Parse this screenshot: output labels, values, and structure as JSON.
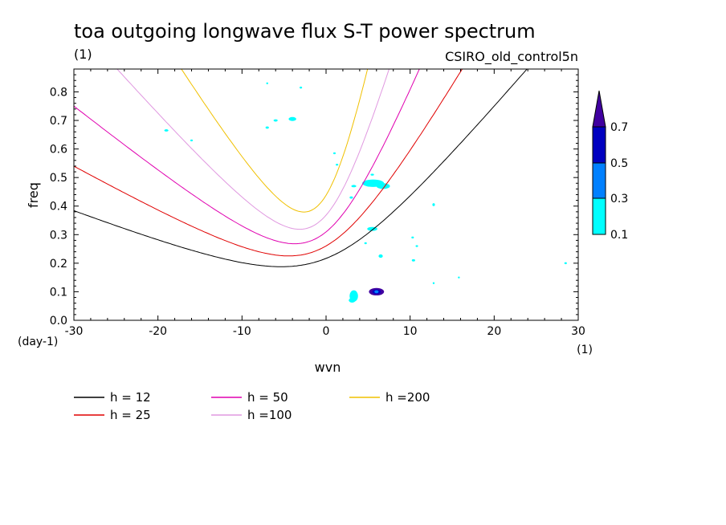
{
  "chart_data": {
    "type": "contour",
    "title": "toa outgoing longwave flux S-T power spectrum",
    "subtitle_left": "(1)",
    "subtitle_right": "CSIRO_old_control5n",
    "xlabel": "wvn",
    "ylabel": "freq",
    "x_unit_label": "(1)",
    "y_unit_label": "(day-1)",
    "xlim": [
      -30,
      30
    ],
    "ylim": [
      0,
      0.88
    ],
    "x_ticks": [
      -30,
      -20,
      -10,
      0,
      10,
      20,
      30
    ],
    "x_tick_labels": [
      "-30",
      "-20",
      "-10",
      "0",
      "10",
      "20",
      "30"
    ],
    "y_ticks": [
      0,
      0.1,
      0.2,
      0.3,
      0.4,
      0.5,
      0.6,
      0.7,
      0.8
    ],
    "y_tick_labels": [
      "0.0",
      "0.1",
      "0.2",
      "0.3",
      "0.4",
      "0.5",
      "0.6",
      "0.7",
      "0.8"
    ],
    "series": [
      {
        "name": "h = 12",
        "h": 12,
        "color": "#000000"
      },
      {
        "name": "h = 25",
        "h": 25,
        "color": "#e00000"
      },
      {
        "name": "h = 50",
        "h": 50,
        "color": "#e000b0"
      },
      {
        "name": "h =100",
        "h": 100,
        "color": "#e098e0"
      },
      {
        "name": "h =200",
        "h": 200,
        "color": "#f0c000"
      }
    ],
    "colorbar": {
      "levels": [
        "0.1",
        "0.3",
        "0.5",
        "0.7"
      ],
      "colors": [
        "#00ffff",
        "#0080ff",
        "#0000c0",
        "#4000a0"
      ]
    },
    "contour_patches": [
      {
        "x": 6.0,
        "y": 0.1,
        "rx": 0.9,
        "ry": 0.013,
        "level": 3
      },
      {
        "x": 6.0,
        "y": 0.1,
        "rx": 0.5,
        "ry": 0.008,
        "level": 2
      },
      {
        "x": 6.0,
        "y": 0.1,
        "rx": 0.25,
        "ry": 0.005,
        "level": 1
      },
      {
        "x": 5.6,
        "y": 0.48,
        "rx": 1.3,
        "ry": 0.013,
        "level": 0
      },
      {
        "x": 6.8,
        "y": 0.47,
        "rx": 0.8,
        "ry": 0.01,
        "level": 0
      },
      {
        "x": 3.3,
        "y": 0.085,
        "rx": 0.5,
        "ry": 0.02,
        "level": 0
      },
      {
        "x": 3.1,
        "y": 0.07,
        "rx": 0.4,
        "ry": 0.008,
        "level": 0
      },
      {
        "x": 5.5,
        "y": 0.32,
        "rx": 0.6,
        "ry": 0.007,
        "level": 0
      },
      {
        "x": -4.0,
        "y": 0.705,
        "rx": 0.45,
        "ry": 0.007,
        "level": 0
      },
      {
        "x": -6.0,
        "y": 0.7,
        "rx": 0.25,
        "ry": 0.004,
        "level": 0
      },
      {
        "x": -7.0,
        "y": 0.675,
        "rx": 0.2,
        "ry": 0.004,
        "level": 0
      },
      {
        "x": -19.0,
        "y": 0.665,
        "rx": 0.25,
        "ry": 0.004,
        "level": 0
      },
      {
        "x": -16.0,
        "y": 0.63,
        "rx": 0.15,
        "ry": 0.003,
        "level": 0
      },
      {
        "x": 3.3,
        "y": 0.47,
        "rx": 0.3,
        "ry": 0.004,
        "level": 0
      },
      {
        "x": 3.0,
        "y": 0.43,
        "rx": 0.2,
        "ry": 0.004,
        "level": 0
      },
      {
        "x": 5.5,
        "y": 0.51,
        "rx": 0.2,
        "ry": 0.003,
        "level": 0
      },
      {
        "x": 1.0,
        "y": 0.585,
        "rx": 0.15,
        "ry": 0.003,
        "level": 0
      },
      {
        "x": 1.3,
        "y": 0.545,
        "rx": 0.15,
        "ry": 0.003,
        "level": 0
      },
      {
        "x": 6.5,
        "y": 0.225,
        "rx": 0.25,
        "ry": 0.006,
        "level": 0
      },
      {
        "x": 10.8,
        "y": 0.26,
        "rx": 0.15,
        "ry": 0.003,
        "level": 0
      },
      {
        "x": 10.3,
        "y": 0.29,
        "rx": 0.15,
        "ry": 0.003,
        "level": 0
      },
      {
        "x": 10.4,
        "y": 0.21,
        "rx": 0.2,
        "ry": 0.004,
        "level": 0
      },
      {
        "x": 12.8,
        "y": 0.405,
        "rx": 0.15,
        "ry": 0.005,
        "level": 0
      },
      {
        "x": 4.7,
        "y": 0.27,
        "rx": 0.15,
        "ry": 0.003,
        "level": 0
      },
      {
        "x": -7.0,
        "y": 0.83,
        "rx": 0.12,
        "ry": 0.003,
        "level": 0
      },
      {
        "x": -3.0,
        "y": 0.815,
        "rx": 0.15,
        "ry": 0.003,
        "level": 0
      },
      {
        "x": 28.5,
        "y": 0.2,
        "rx": 0.15,
        "ry": 0.003,
        "level": 0
      },
      {
        "x": 12.8,
        "y": 0.13,
        "rx": 0.1,
        "ry": 0.003,
        "level": 0
      },
      {
        "x": 15.8,
        "y": 0.15,
        "rx": 0.1,
        "ry": 0.003,
        "level": 0
      }
    ]
  }
}
